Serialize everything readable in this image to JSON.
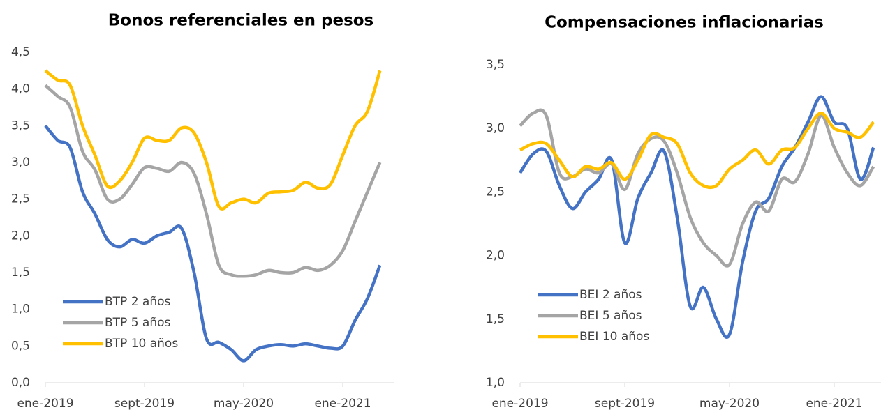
{
  "chart_data": [
    {
      "type": "line",
      "title": "Bonos referenciales en pesos",
      "categories": [
        "ene-2019",
        null,
        null,
        null,
        null,
        null,
        null,
        null,
        "sept-2019",
        null,
        null,
        null,
        null,
        null,
        null,
        null,
        "may-2020",
        null,
        null,
        null,
        null,
        null,
        null,
        null,
        "ene-2021",
        null,
        null,
        null
      ],
      "series": [
        {
          "name": "BTP 2 años",
          "color": "#4472c4",
          "values": [
            3.5,
            3.3,
            3.2,
            2.6,
            2.3,
            1.95,
            1.85,
            1.95,
            1.9,
            2.0,
            2.05,
            2.1,
            1.5,
            0.6,
            0.55,
            0.45,
            0.3,
            0.45,
            0.5,
            0.52,
            0.5,
            0.53,
            0.5,
            0.47,
            0.5,
            0.85,
            1.15,
            1.6
          ]
        },
        {
          "name": "BTP 5 años",
          "color": "#a5a5a5",
          "values": [
            4.05,
            3.9,
            3.75,
            3.15,
            2.9,
            2.5,
            2.5,
            2.7,
            2.93,
            2.92,
            2.88,
            3.0,
            2.85,
            2.3,
            1.6,
            1.47,
            1.45,
            1.47,
            1.53,
            1.5,
            1.5,
            1.57,
            1.53,
            1.6,
            1.8,
            2.2,
            2.6,
            3.0
          ]
        },
        {
          "name": "BTP 10 años",
          "color": "#ffc000",
          "values": [
            4.25,
            4.12,
            4.05,
            3.5,
            3.1,
            2.68,
            2.75,
            3.0,
            3.33,
            3.3,
            3.3,
            3.47,
            3.4,
            3.0,
            2.4,
            2.45,
            2.5,
            2.45,
            2.58,
            2.6,
            2.62,
            2.73,
            2.65,
            2.7,
            3.1,
            3.5,
            3.7,
            4.25
          ]
        }
      ],
      "ylim": [
        0,
        4.5
      ],
      "yticks": [
        {
          "value": 0,
          "label": "0,0"
        },
        {
          "value": 0.5,
          "label": "0,5"
        },
        {
          "value": 1,
          "label": "1,0"
        },
        {
          "value": 1.5,
          "label": "1,5"
        },
        {
          "value": 2,
          "label": "2,0"
        },
        {
          "value": 2.5,
          "label": "2,5"
        },
        {
          "value": 3,
          "label": "3,0"
        },
        {
          "value": 3.5,
          "label": "3,5"
        },
        {
          "value": 4,
          "label": "4,0"
        },
        {
          "value": 4.5,
          "label": "4,5"
        }
      ],
      "legend": "lower left"
    },
    {
      "type": "line",
      "title": "Compensaciones inflacionarias",
      "categories": [
        "ene-2019",
        null,
        null,
        null,
        null,
        null,
        null,
        null,
        "sept-2019",
        null,
        null,
        null,
        null,
        null,
        null,
        null,
        "may-2020",
        null,
        null,
        null,
        null,
        null,
        null,
        null,
        "ene-2021",
        null,
        null,
        null
      ],
      "series": [
        {
          "name": "BEI 2 años",
          "color": "#4472c4",
          "values": [
            2.65,
            2.8,
            2.82,
            2.55,
            2.37,
            2.5,
            2.6,
            2.75,
            2.1,
            2.45,
            2.65,
            2.82,
            2.3,
            1.6,
            1.75,
            1.5,
            1.38,
            1.95,
            2.35,
            2.45,
            2.7,
            2.85,
            3.05,
            3.25,
            3.05,
            3.0,
            2.6,
            2.85
          ]
        },
        {
          "name": "BEI 5 años",
          "color": "#a5a5a5",
          "values": [
            3.02,
            3.12,
            3.1,
            2.65,
            2.62,
            2.68,
            2.65,
            2.72,
            2.52,
            2.8,
            2.92,
            2.9,
            2.65,
            2.3,
            2.1,
            2.0,
            1.93,
            2.25,
            2.42,
            2.35,
            2.6,
            2.58,
            2.8,
            3.1,
            2.85,
            2.65,
            2.55,
            2.7
          ]
        },
        {
          "name": "BEI 10 años",
          "color": "#ffc000",
          "values": [
            2.83,
            2.88,
            2.88,
            2.75,
            2.62,
            2.7,
            2.68,
            2.73,
            2.6,
            2.75,
            2.95,
            2.93,
            2.88,
            2.65,
            2.55,
            2.55,
            2.68,
            2.75,
            2.83,
            2.72,
            2.83,
            2.85,
            3.0,
            3.12,
            3.0,
            2.97,
            2.93,
            3.05
          ]
        }
      ],
      "ylim": [
        1,
        3.5
      ],
      "yticks": [
        {
          "value": 1,
          "label": "1,0"
        },
        {
          "value": 1.5,
          "label": "1,5"
        },
        {
          "value": 2,
          "label": "2,0"
        },
        {
          "value": 2.5,
          "label": "2,5"
        },
        {
          "value": 3,
          "label": "3,0"
        },
        {
          "value": 3.5,
          "label": "3,5"
        }
      ],
      "legend": "lower left"
    }
  ]
}
